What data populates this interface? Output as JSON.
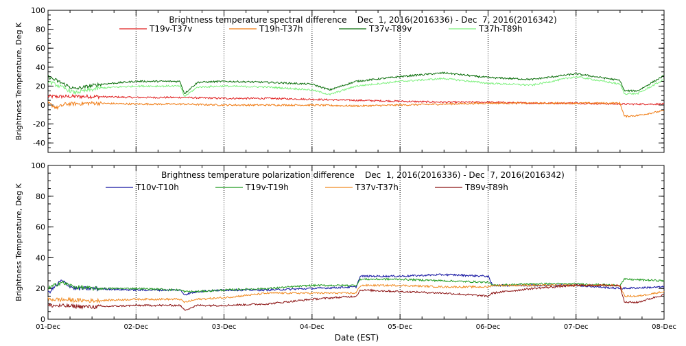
{
  "xlabel": "Date (EST)",
  "x_ticks": [
    "01-Dec",
    "02-Dec",
    "03-Dec",
    "04-Dec",
    "05-Dec",
    "06-Dec",
    "07-Dec",
    "08-Dec"
  ],
  "chart_data": [
    {
      "type": "line",
      "title": "Brightness temperature spectral difference    Dec  1, 2016(2016336) - Dec  7, 2016(2016342)",
      "ylabel": "Brightness Temperature, Deg K",
      "ylim": [
        -50,
        100
      ],
      "yticks": [
        -40,
        -20,
        0,
        20,
        40,
        60,
        80,
        100
      ],
      "xlim": [
        "01-Dec",
        "08-Dec"
      ],
      "grid": "vertical dotted at each day",
      "legend_placement": "top-center",
      "series": [
        {
          "name": "T19v-T37v",
          "color": "#e02020",
          "x": [
            0.0,
            0.5,
            1.0,
            1.5,
            2.0,
            2.5,
            3.0,
            3.5,
            4.0,
            4.5,
            5.0,
            5.5,
            6.0,
            6.5,
            7.0
          ],
          "values": [
            9,
            9,
            8,
            8,
            7,
            7,
            6,
            5,
            4,
            3,
            3,
            2,
            2,
            1,
            1
          ]
        },
        {
          "name": "T19h-T37h",
          "color": "#f07a10",
          "x": [
            0.0,
            0.1,
            0.2,
            0.5,
            1.0,
            1.5,
            2.0,
            2.5,
            3.0,
            3.5,
            4.0,
            4.5,
            5.0,
            5.5,
            6.0,
            6.5,
            6.55,
            6.7,
            7.0
          ],
          "values": [
            2,
            -3,
            1,
            2,
            1,
            1,
            0,
            0,
            0,
            -1,
            0,
            1,
            2,
            2,
            2,
            2,
            -12,
            -11,
            -6
          ]
        },
        {
          "name": "T37v-T89v",
          "color": "#0a6e0a",
          "x": [
            0.0,
            0.3,
            0.6,
            1.0,
            1.5,
            1.55,
            1.7,
            2.0,
            2.5,
            3.0,
            3.2,
            3.5,
            4.0,
            4.5,
            5.0,
            5.5,
            6.0,
            6.5,
            6.55,
            6.7,
            7.0
          ],
          "values": [
            30,
            17,
            22,
            25,
            25,
            12,
            24,
            25,
            24,
            22,
            16,
            25,
            30,
            34,
            29,
            27,
            33,
            26,
            15,
            15,
            31
          ]
        },
        {
          "name": "T37h-T89h",
          "color": "#7cf07c",
          "x": [
            0.0,
            0.3,
            0.6,
            1.0,
            1.5,
            1.55,
            1.7,
            2.0,
            2.5,
            3.0,
            3.2,
            3.5,
            4.0,
            4.5,
            5.0,
            5.5,
            6.0,
            6.5,
            6.55,
            6.7,
            7.0
          ],
          "values": [
            25,
            13,
            18,
            20,
            20,
            9,
            19,
            20,
            19,
            16,
            11,
            20,
            25,
            28,
            23,
            21,
            30,
            22,
            12,
            12,
            27
          ]
        }
      ]
    },
    {
      "type": "line",
      "title": "Brightness temperature polarization difference    Dec  1, 2016(2016336) - Dec  7, 2016(2016342)",
      "ylabel": "Brightness Temperature, Deg K",
      "ylim": [
        0,
        100
      ],
      "yticks": [
        0,
        20,
        40,
        60,
        80,
        100
      ],
      "xlim": [
        "01-Dec",
        "08-Dec"
      ],
      "grid": "vertical dotted at each day",
      "legend_placement": "top-center",
      "series": [
        {
          "name": "T10v-T10h",
          "color": "#1010a0",
          "x": [
            0.0,
            0.15,
            0.3,
            0.5,
            1.0,
            1.5,
            1.55,
            1.7,
            2.0,
            2.5,
            3.0,
            3.5,
            3.55,
            4.0,
            4.5,
            5.0,
            5.05,
            5.5,
            6.0,
            6.5,
            7.0
          ],
          "values": [
            17,
            25,
            20,
            20,
            19,
            19,
            16,
            18,
            19,
            19,
            20,
            21,
            28,
            28,
            29,
            28,
            22,
            22,
            22,
            20,
            21
          ]
        },
        {
          "name": "T19v-T19h",
          "color": "#1f9a1f",
          "x": [
            0.0,
            0.15,
            0.3,
            0.5,
            1.0,
            1.5,
            1.55,
            1.7,
            2.0,
            2.5,
            3.0,
            3.5,
            3.55,
            4.0,
            4.5,
            5.0,
            5.05,
            5.5,
            6.0,
            6.5,
            6.55,
            7.0
          ],
          "values": [
            20,
            24,
            21,
            20,
            20,
            19,
            18,
            18,
            19,
            20,
            22,
            22,
            26,
            26,
            25,
            24,
            22,
            23,
            23,
            22,
            26,
            25
          ]
        },
        {
          "name": "T37v-T37h",
          "color": "#f08a20",
          "x": [
            0.0,
            0.5,
            1.0,
            1.5,
            1.55,
            1.7,
            2.0,
            2.5,
            3.0,
            3.5,
            3.55,
            4.0,
            4.5,
            5.0,
            5.05,
            5.5,
            6.0,
            6.5,
            6.55,
            6.7,
            7.0
          ],
          "values": [
            13,
            12,
            13,
            13,
            11,
            13,
            14,
            17,
            17,
            17,
            22,
            22,
            21,
            21,
            22,
            22,
            22,
            22,
            15,
            15,
            18
          ]
        },
        {
          "name": "T89v-T89h",
          "color": "#8a1010",
          "x": [
            0.0,
            0.5,
            1.0,
            1.5,
            1.55,
            1.7,
            2.0,
            2.5,
            3.0,
            3.5,
            3.55,
            4.0,
            4.5,
            5.0,
            5.05,
            5.5,
            6.0,
            6.5,
            6.55,
            6.7,
            7.0
          ],
          "values": [
            9,
            8,
            9,
            9,
            6,
            9,
            9,
            10,
            13,
            15,
            19,
            18,
            17,
            15,
            17,
            20,
            22,
            22,
            11,
            11,
            16
          ]
        }
      ]
    }
  ]
}
